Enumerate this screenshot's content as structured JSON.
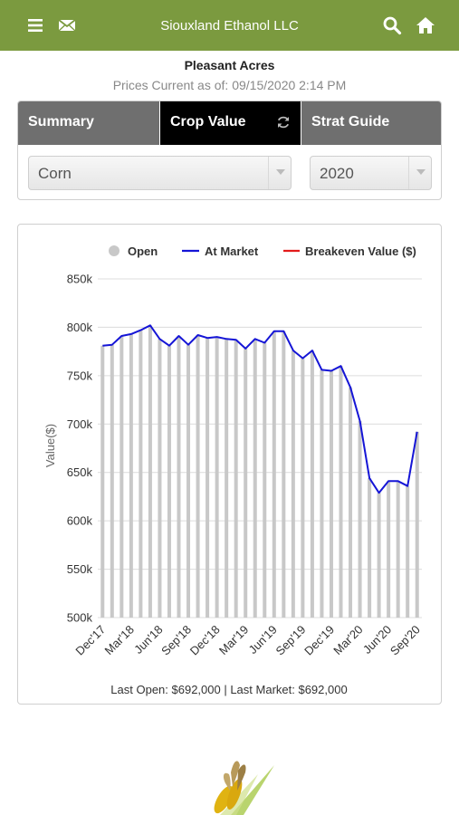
{
  "app": {
    "title": "Siouxland Ethanol LLC"
  },
  "icons": {
    "menu": "menu-icon",
    "mail": "mail-icon",
    "search": "search-icon",
    "home": "home-icon",
    "refresh": "refresh-icon"
  },
  "colors": {
    "topbar": "#7b9a3f",
    "at_market": "#1515d6",
    "breakeven": "#e31b1b",
    "open": "#c8c8c8"
  },
  "header": {
    "name": "Pleasant Acres",
    "prices_current": "Prices Current as of: 09/15/2020 2:14 PM"
  },
  "tabs": [
    {
      "label": "Summary",
      "active": false
    },
    {
      "label": "Crop Value",
      "active": true
    },
    {
      "label": "Strat Guide",
      "active": false
    }
  ],
  "selectors": {
    "crop": "Corn",
    "year": "2020"
  },
  "chart_data": {
    "type": "bar",
    "ylabel": "Value($)",
    "ylim": [
      500000,
      850000
    ],
    "yticks": [
      "500k",
      "550k",
      "600k",
      "650k",
      "700k",
      "750k",
      "800k",
      "850k"
    ],
    "ytick_values": [
      500000,
      550000,
      600000,
      650000,
      700000,
      750000,
      800000,
      850000
    ],
    "xtick_labels": [
      "Dec'17",
      "Mar'18",
      "Jun'18",
      "Sep'18",
      "Dec'18",
      "Mar'19",
      "Jun'19",
      "Sep'19",
      "Dec'19",
      "Mar'20",
      "Jun'20",
      "Sep'20"
    ],
    "xtick_index": [
      0,
      3,
      6,
      9,
      12,
      15,
      18,
      21,
      24,
      27,
      30,
      33
    ],
    "legend": [
      {
        "name": "Open",
        "color": "#c8c8c8",
        "marker": "circle"
      },
      {
        "name": "At Market",
        "color": "#1515d6",
        "marker": "line"
      },
      {
        "name": "Breakeven Value ($)",
        "color": "#e31b1b",
        "marker": "line"
      }
    ],
    "legend_position": "top",
    "grid": true,
    "series": [
      {
        "name": "Open",
        "type": "bar",
        "values": [
          781000,
          782000,
          791000,
          793000,
          797000,
          802000,
          788000,
          781000,
          791000,
          782000,
          792000,
          789000,
          790000,
          788000,
          787000,
          778000,
          788000,
          784000,
          796000,
          796000,
          776000,
          768000,
          776000,
          756000,
          755000,
          760000,
          738000,
          703000,
          644000,
          629000,
          641000,
          641000,
          636000,
          692000
        ]
      },
      {
        "name": "At Market",
        "type": "line",
        "values": [
          781000,
          782000,
          791000,
          793000,
          797000,
          802000,
          788000,
          781000,
          791000,
          782000,
          792000,
          789000,
          790000,
          788000,
          787000,
          778000,
          788000,
          784000,
          796000,
          796000,
          776000,
          768000,
          776000,
          756000,
          755000,
          760000,
          738000,
          703000,
          644000,
          629000,
          641000,
          641000,
          636000,
          692000
        ]
      }
    ]
  },
  "footer": {
    "summary": "Last Open: $692,000 | Last Market: $692,000"
  }
}
